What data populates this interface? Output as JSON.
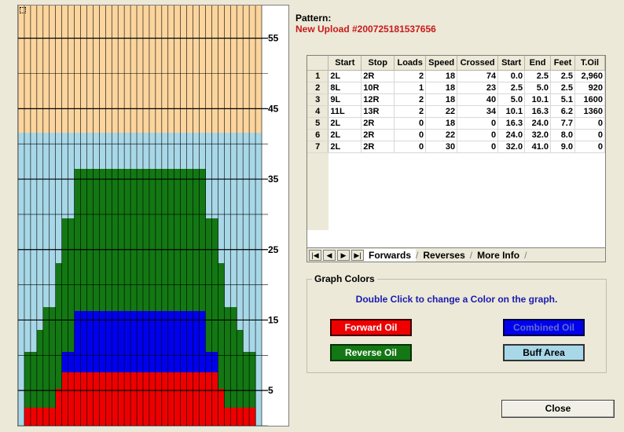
{
  "pattern": {
    "label": "Pattern:",
    "name": "New Upload #200725181537656"
  },
  "graph": {
    "y_ticks": [
      "55",
      "45",
      "35",
      "25",
      "15",
      "5"
    ],
    "colors": {
      "buff": "#fcd59e",
      "reverse_bg": "#a8d8e8",
      "reverse_oil": "#137813",
      "combined": "#0000ee",
      "forward_oil": "#ee0000"
    }
  },
  "grid": {
    "headers": [
      "",
      "Start",
      "Stop",
      "Loads",
      "Speed",
      "Crossed",
      "Start",
      "End",
      "Feet",
      "T.Oil"
    ],
    "rows": [
      [
        "1",
        "2L",
        "2R",
        "2",
        "18",
        "74",
        "0.0",
        "2.5",
        "2.5",
        "2,960"
      ],
      [
        "2",
        "8L",
        "10R",
        "1",
        "18",
        "23",
        "2.5",
        "5.0",
        "2.5",
        "920"
      ],
      [
        "3",
        "9L",
        "12R",
        "2",
        "18",
        "40",
        "5.0",
        "10.1",
        "5.1",
        "1600"
      ],
      [
        "4",
        "11L",
        "13R",
        "2",
        "22",
        "34",
        "10.1",
        "16.3",
        "6.2",
        "1360"
      ],
      [
        "5",
        "2L",
        "2R",
        "0",
        "18",
        "0",
        "16.3",
        "24.0",
        "7.7",
        "0"
      ],
      [
        "6",
        "2L",
        "2R",
        "0",
        "22",
        "0",
        "24.0",
        "32.0",
        "8.0",
        "0"
      ],
      [
        "7",
        "2L",
        "2R",
        "0",
        "30",
        "0",
        "32.0",
        "41.0",
        "9.0",
        "0"
      ]
    ]
  },
  "tabs": {
    "nav": [
      "|◀",
      "◀",
      "▶",
      "▶|"
    ],
    "items": [
      "Forwards",
      "Reverses",
      "More Info"
    ]
  },
  "graph_colors": {
    "title": "Graph Colors",
    "hint": "Double Click  to change a Color on the graph.",
    "forward_oil": "Forward Oil",
    "combined_oil": "Combined Oil",
    "reverse_oil": "Reverse Oil",
    "buff_area": "Buff Area"
  },
  "close_label": "Close"
}
